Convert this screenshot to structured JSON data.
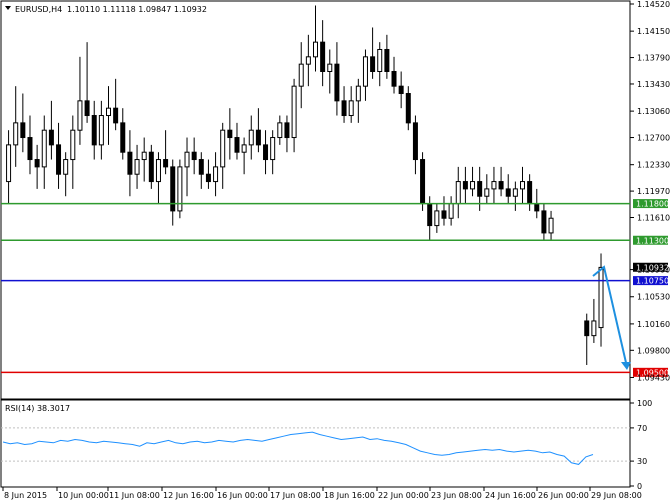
{
  "header": {
    "symbol": "EURUSD,H4",
    "ohlc": "1.10110 1.11118 1.09847 1.10932"
  },
  "colors": {
    "support_green": "#2e9a2e",
    "level_blue": "#1010d0",
    "level_red": "#e00000",
    "arrow_blue": "#1e90e0",
    "rsi_line": "#1e90ff"
  },
  "chart_data": [
    {
      "type": "candlestick",
      "title": "EURUSD,H4",
      "ylim": [
        1.0915,
        1.1452
      ],
      "y_ticks": [
        "1.14520",
        "1.14150",
        "1.13790",
        "1.13430",
        "1.13060",
        "1.12700",
        "1.12330",
        "1.11970",
        "1.11610",
        "1.10900",
        "1.10530",
        "1.10160",
        "1.09800",
        "1.09430"
      ],
      "x_ticks": [
        "8 Jun 2015",
        "10 Jun 00:00",
        "11 Jun 08:00",
        "12 Jun 16:00",
        "16 Jun 00:00",
        "17 Jun 08:00",
        "18 Jun 16:00",
        "22 Jun 00:00",
        "23 Jun 08:00",
        "24 Jun 16:00",
        "26 Jun 00:00",
        "29 Jun 08:00"
      ],
      "current_price": "1.10932",
      "levels": [
        {
          "label": "1.11800",
          "value": 1.118,
          "color": "#2e9a2e"
        },
        {
          "label": "1.11300",
          "value": 1.113,
          "color": "#2e9a2e"
        },
        {
          "label": "1.10750",
          "value": 1.1075,
          "color": "#1010d0"
        },
        {
          "label": "1.09500",
          "value": 1.095,
          "color": "#e00000"
        }
      ],
      "candles": [
        [
          1.121,
          1.128,
          1.118,
          1.126
        ],
        [
          1.126,
          1.134,
          1.123,
          1.129
        ],
        [
          1.129,
          1.133,
          1.125,
          1.127
        ],
        [
          1.127,
          1.13,
          1.122,
          1.124
        ],
        [
          1.124,
          1.126,
          1.12,
          1.123
        ],
        [
          1.123,
          1.13,
          1.12,
          1.128
        ],
        [
          1.128,
          1.132,
          1.124,
          1.126
        ],
        [
          1.126,
          1.129,
          1.12,
          1.122
        ],
        [
          1.122,
          1.125,
          1.119,
          1.124
        ],
        [
          1.124,
          1.13,
          1.12,
          1.128
        ],
        [
          1.128,
          1.138,
          1.126,
          1.132
        ],
        [
          1.132,
          1.14,
          1.129,
          1.13
        ],
        [
          1.13,
          1.132,
          1.124,
          1.126
        ],
        [
          1.126,
          1.132,
          1.124,
          1.13
        ],
        [
          1.13,
          1.134,
          1.126,
          1.131
        ],
        [
          1.131,
          1.135,
          1.128,
          1.129
        ],
        [
          1.129,
          1.131,
          1.124,
          1.125
        ],
        [
          1.125,
          1.128,
          1.119,
          1.122
        ],
        [
          1.122,
          1.126,
          1.12,
          1.124
        ],
        [
          1.124,
          1.127,
          1.121,
          1.125
        ],
        [
          1.125,
          1.126,
          1.12,
          1.121
        ],
        [
          1.121,
          1.125,
          1.118,
          1.124
        ],
        [
          1.124,
          1.128,
          1.122,
          1.123
        ],
        [
          1.123,
          1.124,
          1.115,
          1.117
        ],
        [
          1.117,
          1.124,
          1.116,
          1.123
        ],
        [
          1.123,
          1.127,
          1.119,
          1.125
        ],
        [
          1.125,
          1.127,
          1.122,
          1.124
        ],
        [
          1.124,
          1.125,
          1.12,
          1.122
        ],
        [
          1.122,
          1.124,
          1.12,
          1.121
        ],
        [
          1.121,
          1.125,
          1.119,
          1.123
        ],
        [
          1.123,
          1.129,
          1.12,
          1.128
        ],
        [
          1.128,
          1.131,
          1.124,
          1.127
        ],
        [
          1.127,
          1.129,
          1.124,
          1.125
        ],
        [
          1.125,
          1.127,
          1.122,
          1.126
        ],
        [
          1.126,
          1.13,
          1.124,
          1.128
        ],
        [
          1.128,
          1.131,
          1.125,
          1.126
        ],
        [
          1.126,
          1.128,
          1.122,
          1.124
        ],
        [
          1.124,
          1.128,
          1.122,
          1.127
        ],
        [
          1.127,
          1.13,
          1.126,
          1.129
        ],
        [
          1.129,
          1.13,
          1.125,
          1.127
        ],
        [
          1.127,
          1.135,
          1.125,
          1.134
        ],
        [
          1.134,
          1.14,
          1.131,
          1.137
        ],
        [
          1.137,
          1.141,
          1.134,
          1.138
        ],
        [
          1.138,
          1.145,
          1.136,
          1.14
        ],
        [
          1.14,
          1.143,
          1.134,
          1.136
        ],
        [
          1.136,
          1.139,
          1.133,
          1.137
        ],
        [
          1.137,
          1.14,
          1.13,
          1.132
        ],
        [
          1.132,
          1.134,
          1.129,
          1.13
        ],
        [
          1.13,
          1.134,
          1.129,
          1.132
        ],
        [
          1.132,
          1.135,
          1.129,
          1.134
        ],
        [
          1.134,
          1.139,
          1.132,
          1.138
        ],
        [
          1.138,
          1.142,
          1.135,
          1.136
        ],
        [
          1.136,
          1.14,
          1.134,
          1.139
        ],
        [
          1.139,
          1.141,
          1.135,
          1.136
        ],
        [
          1.136,
          1.138,
          1.133,
          1.134
        ],
        [
          1.134,
          1.136,
          1.131,
          1.133
        ],
        [
          1.133,
          1.134,
          1.128,
          1.129
        ],
        [
          1.129,
          1.13,
          1.122,
          1.124
        ],
        [
          1.124,
          1.125,
          1.117,
          1.118
        ],
        [
          1.118,
          1.119,
          1.113,
          1.115
        ],
        [
          1.115,
          1.118,
          1.114,
          1.117
        ],
        [
          1.117,
          1.119,
          1.115,
          1.116
        ],
        [
          1.116,
          1.119,
          1.115,
          1.118
        ],
        [
          1.118,
          1.123,
          1.116,
          1.121
        ],
        [
          1.121,
          1.123,
          1.118,
          1.12
        ],
        [
          1.12,
          1.123,
          1.119,
          1.121
        ],
        [
          1.121,
          1.123,
          1.117,
          1.119
        ],
        [
          1.119,
          1.122,
          1.118,
          1.12
        ],
        [
          1.12,
          1.123,
          1.118,
          1.121
        ],
        [
          1.121,
          1.123,
          1.119,
          1.12
        ],
        [
          1.12,
          1.122,
          1.118,
          1.119
        ],
        [
          1.119,
          1.121,
          1.117,
          1.12
        ],
        [
          1.12,
          1.123,
          1.118,
          1.121
        ],
        [
          1.121,
          1.122,
          1.117,
          1.118
        ],
        [
          1.118,
          1.12,
          1.116,
          1.117
        ],
        [
          1.117,
          1.118,
          1.113,
          1.114
        ],
        [
          1.114,
          1.117,
          1.113,
          1.116
        ],
        [
          1.102,
          1.103,
          1.096,
          1.1
        ],
        [
          1.1,
          1.105,
          1.099,
          1.102
        ],
        [
          1.1011,
          1.1112,
          1.0985,
          1.1093
        ]
      ],
      "x_index_span": [
        0,
        84
      ]
    },
    {
      "type": "line",
      "title": "RSI(14) 38.3017",
      "ylim": [
        0,
        100
      ],
      "y_ticks": [
        "100",
        "70",
        "30",
        "0"
      ],
      "values": [
        53,
        51,
        52,
        50,
        51,
        54,
        53,
        52,
        55,
        54,
        56,
        55,
        53,
        52,
        54,
        53,
        52,
        51,
        50,
        48,
        52,
        51,
        53,
        55,
        52,
        51,
        53,
        54,
        52,
        53,
        55,
        54,
        53,
        55,
        56,
        55,
        54,
        56,
        58,
        60,
        62,
        63,
        64,
        65,
        62,
        60,
        58,
        56,
        57,
        58,
        59,
        56,
        57,
        55,
        54,
        52,
        50,
        46,
        42,
        40,
        38,
        37,
        38,
        40,
        41,
        42,
        43,
        44,
        43,
        44,
        42,
        41,
        42,
        43,
        42,
        40,
        41,
        38,
        36,
        28,
        26,
        35,
        38
      ]
    }
  ]
}
